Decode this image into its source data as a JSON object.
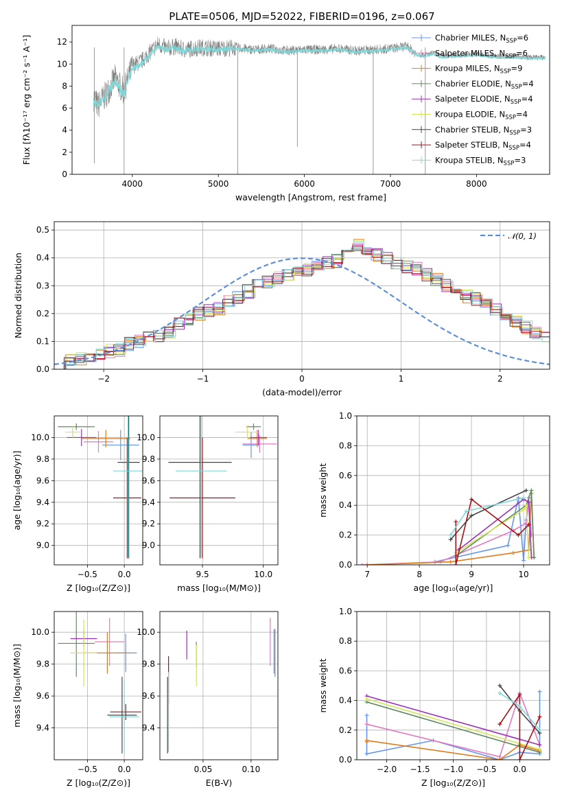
{
  "figure": {
    "title": "PLATE=0506, MJD=52022, FIBERID=0196, z=0.067"
  },
  "legend_entries": [
    {
      "label": "Chabrier MILES, N",
      "sub": "SSP",
      "suffix": "=6",
      "color": "#6495ed"
    },
    {
      "label": "Salpeter MILES, N",
      "sub": "SSP",
      "suffix": "=6",
      "color": "#e377c2"
    },
    {
      "label": "Kroupa MILES, N",
      "sub": "SSP",
      "suffix": "=9",
      "color": "#e07b1a"
    },
    {
      "label": "Chabrier ELODIE, N",
      "sub": "SSP",
      "suffix": "=4",
      "color": "#5f8a5f"
    },
    {
      "label": "Salpeter ELODIE, N",
      "sub": "SSP",
      "suffix": "=4",
      "color": "#9c2fb5"
    },
    {
      "label": "Kroupa ELODIE, N",
      "sub": "SSP",
      "suffix": "=4",
      "color": "#d4e35a"
    },
    {
      "label": "Chabrier STELIB, N",
      "sub": "SSP",
      "suffix": "=3",
      "color": "#444444"
    },
    {
      "label": "Salpeter STELIB, N",
      "sub": "SSP",
      "suffix": "=4",
      "color": "#a50f15"
    },
    {
      "label": "Kroupa STELIB, N",
      "sub": "SSP",
      "suffix": "=3",
      "color": "#7fd8d8"
    }
  ],
  "chart_data": [
    {
      "id": "spectrum",
      "type": "line",
      "xlabel": "wavelength [Angstrom, rest frame]",
      "ylabel": "Flux [fλ10⁻¹⁷ erg cm⁻² s⁻¹ A⁻¹]",
      "xlim": [
        3300,
        8850
      ],
      "ylim": [
        0,
        13.5
      ],
      "xticks": [
        4000,
        5000,
        6000,
        7000,
        8000
      ],
      "yticks": [
        0,
        2,
        4,
        6,
        8,
        10,
        12
      ],
      "data_color": "#808080",
      "model_color": "#7fd8d8",
      "data_x": [
        3550,
        3600,
        3700,
        3800,
        3900,
        4000,
        4100,
        4200,
        4300,
        4400,
        4500,
        4600,
        4800,
        5000,
        5200,
        5400,
        5600,
        5800,
        6000,
        6200,
        6400,
        6600,
        6800,
        7000,
        7200,
        7300,
        7400,
        7500,
        7600,
        7800,
        8000,
        8200,
        8400,
        8600,
        8800
      ],
      "data_y": [
        7.0,
        6.2,
        7.3,
        8.7,
        7.5,
        9.8,
        10.2,
        11.0,
        11.8,
        11.4,
        11.6,
        11.3,
        11.5,
        11.4,
        11.5,
        11.3,
        11.4,
        11.2,
        11.3,
        11.3,
        11.4,
        11.2,
        11.3,
        11.4,
        11.6,
        10.9,
        10.8,
        11.0,
        10.7,
        10.8,
        10.9,
        10.7,
        10.7,
        10.6,
        10.6
      ],
      "model_x": [
        3550,
        3600,
        3700,
        3800,
        3900,
        4000,
        4100,
        4200,
        4300,
        4400,
        4500,
        4600,
        4800,
        5000,
        5200,
        5400,
        5600,
        5800,
        6000,
        6200,
        6400,
        6600,
        6800,
        7000,
        7200,
        7300,
        7400,
        7500,
        7600,
        7800,
        8000,
        8200,
        8400,
        8600,
        8800
      ],
      "model_y": [
        6.5,
        6.3,
        7.2,
        8.5,
        7.2,
        9.6,
        10.0,
        10.8,
        11.6,
        11.3,
        11.5,
        11.2,
        11.4,
        11.3,
        11.4,
        11.2,
        11.3,
        11.1,
        11.2,
        11.2,
        11.3,
        11.1,
        11.2,
        11.3,
        11.5,
        10.8,
        10.7,
        10.9,
        10.6,
        10.7,
        10.8,
        10.6,
        10.6,
        10.5,
        10.5
      ]
    },
    {
      "id": "residuals",
      "type": "histogram",
      "xlabel": "(data-model)/error",
      "ylabel": "Normed distribution",
      "xlim": [
        -2.5,
        2.5
      ],
      "ylim": [
        0,
        0.53
      ],
      "xticks": [
        -2,
        -1,
        0,
        1,
        2
      ],
      "yticks": [
        0.0,
        0.1,
        0.2,
        0.3,
        0.4,
        0.5
      ],
      "legend": "𝒩(0, 1)",
      "bin_width": 0.1,
      "bin_start": -2.5,
      "values": [
        0.02,
        0.035,
        0.04,
        0.045,
        0.05,
        0.065,
        0.07,
        0.09,
        0.1,
        0.11,
        0.12,
        0.135,
        0.16,
        0.18,
        0.2,
        0.21,
        0.22,
        0.24,
        0.26,
        0.28,
        0.3,
        0.31,
        0.33,
        0.34,
        0.35,
        0.36,
        0.37,
        0.38,
        0.39,
        0.41,
        0.45,
        0.43,
        0.41,
        0.4,
        0.385,
        0.37,
        0.36,
        0.34,
        0.32,
        0.3,
        0.28,
        0.26,
        0.25,
        0.23,
        0.21,
        0.19,
        0.17,
        0.15,
        0.13,
        0.115,
        0.1,
        0.085,
        0.07,
        0.06,
        0.05,
        0.04,
        0.035,
        0.03,
        0.025,
        0.02
      ]
    },
    {
      "id": "age-vs-Z",
      "type": "errorbar",
      "xlabel": "Z [log₁₀(Z/Z⊙)]",
      "ylabel": "age  [log₁₀(age/yr)]",
      "xlim": [
        -0.95,
        0.25
      ],
      "ylim": [
        8.82,
        10.2
      ],
      "xticks": [
        -0.5,
        0.0
      ],
      "yticks": [
        9.0,
        9.2,
        9.4,
        9.6,
        9.8,
        10.0
      ],
      "points": [
        {
          "x": -0.05,
          "y": 9.93,
          "xerr": 0.25,
          "yerr": 0.14,
          "series": 0
        },
        {
          "x": -0.35,
          "y": 9.96,
          "xerr": 0.2,
          "yerr": 0.1,
          "series": 1
        },
        {
          "x": -0.25,
          "y": 9.99,
          "xerr": 0.33,
          "yerr": 0.08,
          "series": 2
        },
        {
          "x": -0.65,
          "y": 10.1,
          "xerr": 0.25,
          "yerr": 0.03,
          "series": 3
        },
        {
          "x": -0.58,
          "y": 10.0,
          "xerr": 0.2,
          "yerr": 0.08,
          "series": 4
        },
        {
          "x": -0.7,
          "y": 10.05,
          "xerr": 0.1,
          "yerr": 0.06,
          "series": 5
        },
        {
          "x": 0.06,
          "y": 9.77,
          "xerr": 0.15,
          "yerr": 0.89,
          "series": 6
        },
        {
          "x": 0.04,
          "y": 9.44,
          "xerr": 0.19,
          "yerr": 0.56,
          "series": 7
        },
        {
          "x": 0.05,
          "y": 9.69,
          "xerr": 0.2,
          "yerr": 0.8,
          "series": 8
        }
      ]
    },
    {
      "id": "age-vs-mass",
      "type": "errorbar",
      "xlabel": "mass [log₁₀(M/M⊙)]",
      "ylabel": "",
      "xlim": [
        9.15,
        10.12
      ],
      "ylim": [
        8.82,
        10.2
      ],
      "xticks": [
        9.5,
        10.0
      ],
      "yticks": [
        9.0,
        9.2,
        9.4,
        9.6,
        9.8,
        10.0
      ],
      "points": [
        {
          "x": 9.9,
          "y": 9.93,
          "xerr": 0.07,
          "yerr": 0.12,
          "series": 0
        },
        {
          "x": 9.97,
          "y": 9.94,
          "xerr": 0.14,
          "yerr": 0.08,
          "series": 1
        },
        {
          "x": 9.95,
          "y": 9.99,
          "xerr": 0.08,
          "yerr": 0.08,
          "series": 2
        },
        {
          "x": 9.92,
          "y": 10.1,
          "xerr": 0.06,
          "yerr": 0.03,
          "series": 3
        },
        {
          "x": 9.96,
          "y": 10.0,
          "xerr": 0.07,
          "yerr": 0.07,
          "series": 4
        },
        {
          "x": 9.87,
          "y": 10.05,
          "xerr": 0.1,
          "yerr": 0.06,
          "series": 5
        },
        {
          "x": 9.48,
          "y": 9.77,
          "xerr": 0.26,
          "yerr": 0.89,
          "series": 6
        },
        {
          "x": 9.5,
          "y": 9.44,
          "xerr": 0.27,
          "yerr": 0.56,
          "series": 7
        },
        {
          "x": 9.49,
          "y": 9.69,
          "xerr": 0.21,
          "yerr": 0.8,
          "series": 8
        }
      ]
    },
    {
      "id": "weight-vs-age",
      "type": "line",
      "xlabel": "age  [log₁₀(age/yr)]",
      "ylabel": "mass weight",
      "xlim": [
        6.8,
        10.5
      ],
      "ylim": [
        0,
        1.0
      ],
      "xticks": [
        7,
        8,
        9,
        10
      ],
      "yticks": [
        0.0,
        0.2,
        0.4,
        0.6,
        0.8,
        1.0
      ],
      "series": [
        {
          "x": [
            8.3,
            9.7,
            9.9,
            10.0,
            10.05,
            10.1
          ],
          "y": [
            0.02,
            0.13,
            0.45,
            0.03,
            0.3,
            0.45
          ],
          "color": 0
        },
        {
          "x": [
            6.9,
            8.4,
            9.8,
            10.05,
            10.1,
            10.15
          ],
          "y": [
            0.0,
            0.02,
            0.23,
            0.28,
            0.45,
            0.2
          ],
          "color": 1
        },
        {
          "x": [
            7.0,
            8.6,
            9.8,
            10.1,
            10.15,
            10.2
          ],
          "y": [
            0.0,
            0.02,
            0.08,
            0.1,
            0.48,
            0.05
          ],
          "color": 2
        },
        {
          "x": [
            8.7,
            10.05,
            10.15,
            10.2
          ],
          "y": [
            0.06,
            0.4,
            0.5,
            0.05
          ],
          "color": 3
        },
        {
          "x": [
            8.75,
            10.0,
            10.1,
            10.15
          ],
          "y": [
            0.1,
            0.44,
            0.42,
            0.05
          ],
          "color": 4
        },
        {
          "x": [
            8.7,
            10.0,
            10.05,
            10.1
          ],
          "y": [
            0.08,
            0.37,
            0.4,
            0.05
          ],
          "color": 5
        },
        {
          "x": [
            8.6,
            9.0,
            10.05
          ],
          "y": [
            0.17,
            0.33,
            0.5
          ],
          "color": 6
        },
        {
          "x": [
            8.7,
            8.7,
            9.0,
            9.9,
            10.1
          ],
          "y": [
            0.29,
            0.0,
            0.44,
            0.2,
            0.27
          ],
          "color": 7
        },
        {
          "x": [
            8.6,
            8.9,
            10.0
          ],
          "y": [
            0.2,
            0.36,
            0.45
          ],
          "color": 8
        }
      ]
    },
    {
      "id": "mass-vs-Z",
      "type": "errorbar",
      "xlabel": "Z [log₁₀(Z/Z⊙)]",
      "ylabel": "mass [log₁₀(M/M⊙)]",
      "xlim": [
        -0.95,
        0.25
      ],
      "ylim": [
        9.2,
        10.13
      ],
      "xticks": [
        -0.5,
        0.0
      ],
      "yticks": [
        9.4,
        9.6,
        9.8,
        10.0
      ],
      "points": [
        {
          "x": 0.02,
          "y": 9.87,
          "xerr": 0.15,
          "yerr": 0.12,
          "series": 0
        },
        {
          "x": -0.2,
          "y": 9.94,
          "xerr": 0.2,
          "yerr": 0.15,
          "series": 1
        },
        {
          "x": -0.23,
          "y": 9.87,
          "xerr": 0.3,
          "yerr": 0.13,
          "series": 2
        },
        {
          "x": -0.65,
          "y": 9.93,
          "xerr": 0.25,
          "yerr": 0.21,
          "series": 3
        },
        {
          "x": -0.55,
          "y": 9.96,
          "xerr": 0.18,
          "yerr": 0.05,
          "series": 4
        },
        {
          "x": -0.55,
          "y": 9.87,
          "xerr": 0.18,
          "yerr": 0.21,
          "series": 5
        },
        {
          "x": -0.03,
          "y": 9.48,
          "xerr": 0.2,
          "yerr": 0.24,
          "series": 6
        },
        {
          "x": 0.02,
          "y": 9.5,
          "xerr": 0.21,
          "yerr": 0.05,
          "series": 7
        },
        {
          "x": 0.0,
          "y": 9.47,
          "xerr": 0.2,
          "yerr": 0.23,
          "series": 8
        }
      ]
    },
    {
      "id": "mass-vs-EBV",
      "type": "errorbar",
      "xlabel": "E(B-V)",
      "ylabel": "",
      "xlim": [
        0.005,
        0.128
      ],
      "ylim": [
        9.2,
        10.13
      ],
      "xticks": [
        0.05,
        0.1
      ],
      "yticks": [
        9.4,
        9.6,
        9.8,
        10.0
      ],
      "points": [
        {
          "x": 0.125,
          "y": 9.87,
          "xerr": 0.0,
          "yerr": 0.15,
          "series": 0
        },
        {
          "x": 0.12,
          "y": 9.94,
          "xerr": 0.0,
          "yerr": 0.15,
          "series": 1
        },
        {
          "x": 0.124,
          "y": 9.88,
          "xerr": 0.0,
          "yerr": 0.14,
          "series": 2
        },
        {
          "x": 0.043,
          "y": 9.86,
          "xerr": 0.0,
          "yerr": 0.08,
          "series": 3
        },
        {
          "x": 0.033,
          "y": 9.92,
          "xerr": 0.0,
          "yerr": 0.09,
          "series": 4
        },
        {
          "x": 0.043,
          "y": 9.79,
          "xerr": 0.0,
          "yerr": 0.13,
          "series": 5
        },
        {
          "x": 0.013,
          "y": 9.48,
          "xerr": 0.0,
          "yerr": 0.24,
          "series": 6
        },
        {
          "x": 0.014,
          "y": 9.7,
          "xerr": 0.0,
          "yerr": 0.15,
          "series": 7
        },
        {
          "x": 0.014,
          "y": 9.5,
          "xerr": 0.0,
          "yerr": 0.25,
          "series": 8
        }
      ]
    },
    {
      "id": "weight-vs-Z",
      "type": "line",
      "xlabel": "Z [log₁₀(Z/Z⊙)]",
      "ylabel": "mass weight",
      "xlim": [
        -2.45,
        0.45
      ],
      "ylim": [
        0,
        1.0
      ],
      "xticks": [
        -2.0,
        -1.5,
        -1.0,
        -0.5,
        0.0
      ],
      "yticks": [
        0.0,
        0.2,
        0.4,
        0.6,
        0.8,
        1.0
      ],
      "series": [
        {
          "x": [
            -2.3,
            -2.3,
            -1.3,
            -0.3,
            0.0,
            0.3,
            0.3
          ],
          "y": [
            0.3,
            0.04,
            0.13,
            0.0,
            0.05,
            0.04,
            0.46
          ],
          "color": 0
        },
        {
          "x": [
            -2.3,
            -0.3,
            0.0,
            0.3
          ],
          "y": [
            0.24,
            0.02,
            0.45,
            0.1
          ],
          "color": 1
        },
        {
          "x": [
            -2.3,
            -2.3,
            -0.3,
            0.0,
            0.3
          ],
          "y": [
            0.12,
            0.13,
            0.0,
            0.1,
            0.06
          ],
          "color": 2
        },
        {
          "x": [
            -2.3,
            0.3
          ],
          "y": [
            0.39,
            0.05
          ],
          "color": 3
        },
        {
          "x": [
            -2.3,
            0.3
          ],
          "y": [
            0.43,
            0.1
          ],
          "color": 4
        },
        {
          "x": [
            -2.3,
            0.3
          ],
          "y": [
            0.41,
            0.07
          ],
          "color": 5
        },
        {
          "x": [
            -0.3,
            0.0,
            0.3
          ],
          "y": [
            0.5,
            0.33,
            0.18
          ],
          "color": 6
        },
        {
          "x": [
            -0.3,
            0.0,
            0.0,
            0.3
          ],
          "y": [
            0.24,
            0.44,
            0.0,
            0.29
          ],
          "color": 7
        },
        {
          "x": [
            -0.3,
            0.0,
            0.3
          ],
          "y": [
            0.45,
            0.36,
            0.2
          ],
          "color": 8
        }
      ]
    }
  ]
}
